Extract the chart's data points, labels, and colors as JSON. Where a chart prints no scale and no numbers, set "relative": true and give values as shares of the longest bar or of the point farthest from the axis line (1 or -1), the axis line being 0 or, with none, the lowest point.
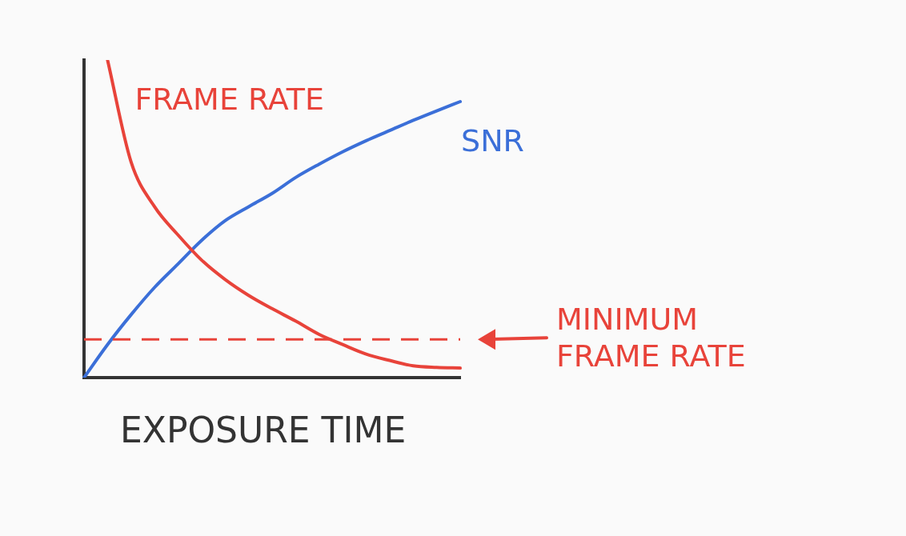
{
  "chart_data": {
    "type": "line",
    "relative": true,
    "xlabel": "EXPOSURE TIME",
    "categories": [
      null,
      null,
      null,
      null,
      null,
      null,
      null,
      null,
      null,
      null,
      null,
      null,
      null,
      null,
      null,
      null,
      null
    ],
    "series": [
      {
        "name": "FRAME RATE",
        "color": "#e8433a",
        "values": [
          null,
          1.0,
          0.679,
          0.538,
          0.449,
          0.37,
          0.309,
          0.259,
          0.217,
          0.178,
          0.136,
          0.104,
          0.074,
          0.054,
          0.037,
          0.032,
          0.03
        ]
      },
      {
        "name": "SNR",
        "color": "#3b6fd8",
        "values": [
          0,
          0.104,
          0.198,
          0.284,
          0.358,
          0.432,
          0.494,
          0.538,
          0.58,
          0.63,
          0.672,
          0.711,
          0.746,
          0.778,
          0.81,
          0.84,
          0.869
        ]
      }
    ],
    "ref_lines": [
      {
        "axis": "y",
        "value": 0.12,
        "label": "MINIMUM FRAME RATE",
        "color": "#e8433a",
        "line_style": "dashed"
      }
    ],
    "grid": false,
    "legend": false,
    "marker": "none",
    "line_style": "solid"
  }
}
